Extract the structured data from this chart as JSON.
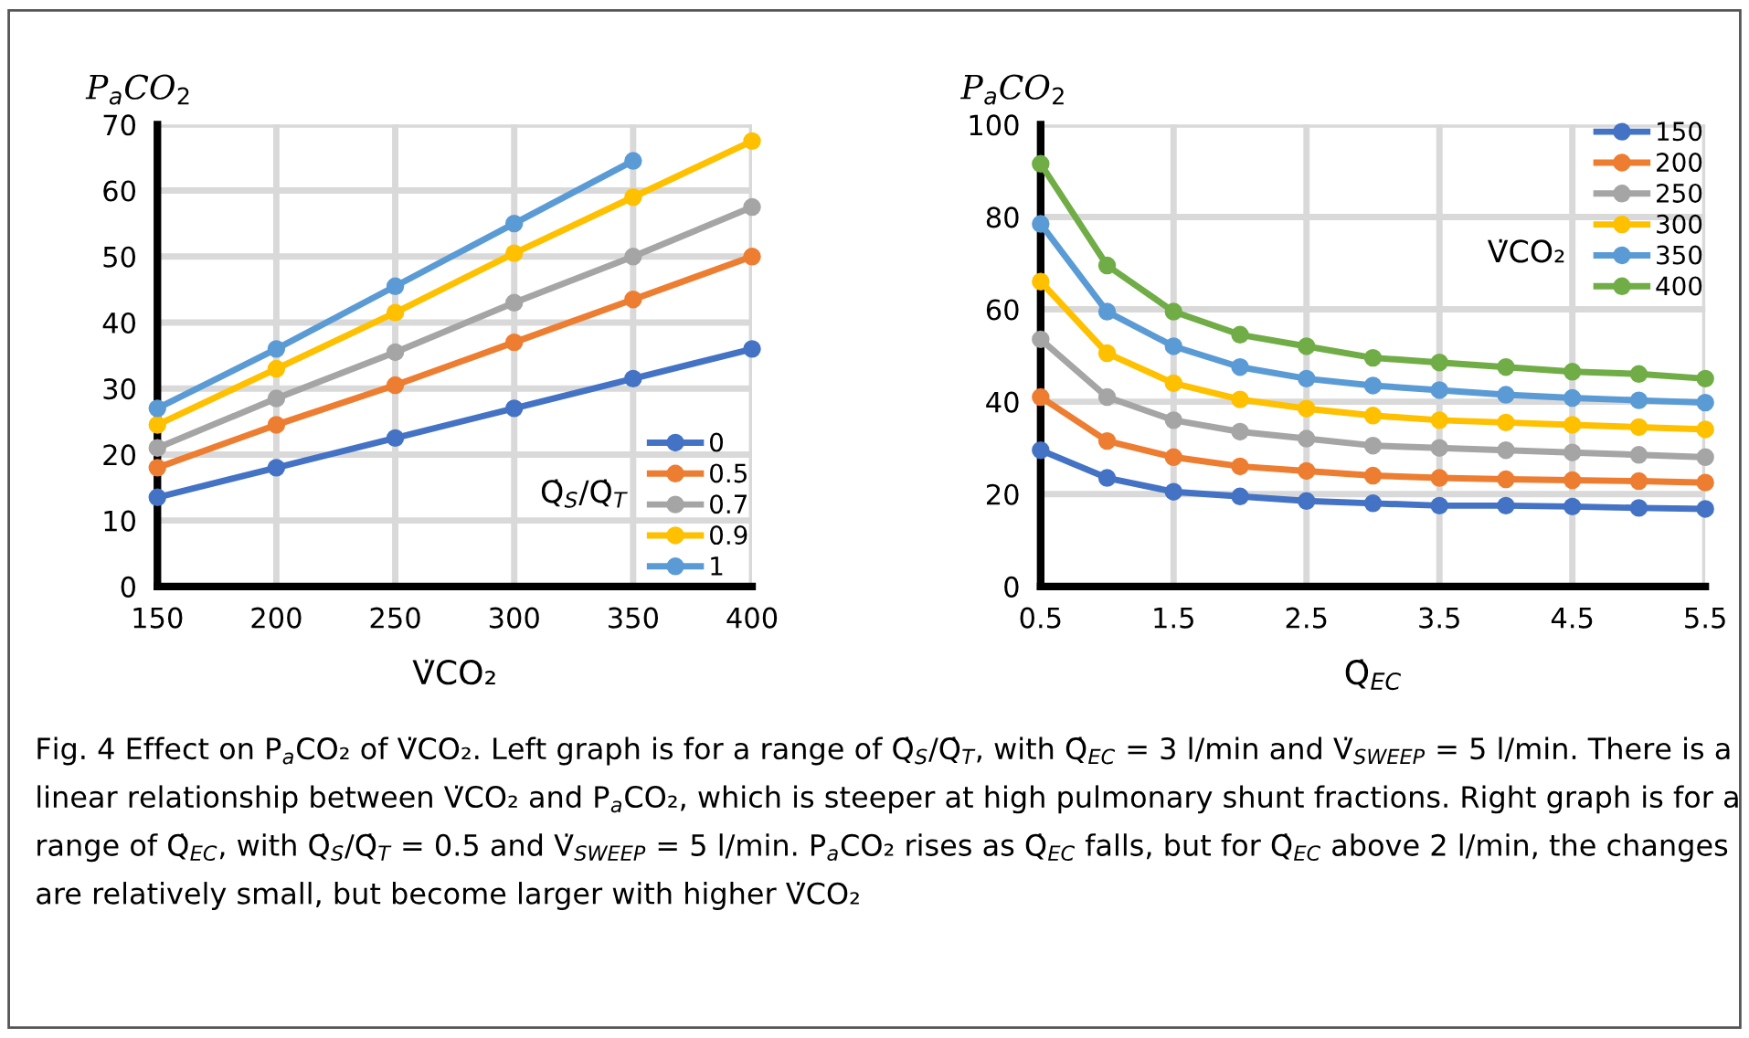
{
  "chart_data": [
    {
      "type": "line",
      "ylabel": "P$_{a}$CO$_{2}$",
      "xlabel": "V̇CO₂",
      "legend_title": "Q̇$_{S}$/Q̇$_{T}$",
      "x": [
        150,
        200,
        250,
        300,
        350,
        400
      ],
      "xlim": [
        150,
        400
      ],
      "xticks": [
        150,
        200,
        250,
        300,
        350,
        400
      ],
      "ylim": [
        0,
        70
      ],
      "yticks": [
        0,
        10,
        20,
        30,
        40,
        50,
        60,
        70
      ],
      "grid": true,
      "legend": "bottom right",
      "marker": "circle",
      "line_style": "solid",
      "series": [
        {
          "name": "0",
          "color": "#4472c4",
          "values": [
            13.5,
            18,
            22.5,
            27,
            31.5,
            36
          ]
        },
        {
          "name": "0.5",
          "color": "#ed7d31",
          "values": [
            18,
            24.5,
            30.5,
            37,
            43.5,
            50
          ]
        },
        {
          "name": "0.7",
          "color": "#a5a5a5",
          "values": [
            21,
            28.5,
            35.5,
            43,
            50,
            57.5
          ]
        },
        {
          "name": "0.9",
          "color": "#ffc000",
          "values": [
            24.5,
            33,
            41.5,
            50.5,
            59,
            67.5
          ]
        },
        {
          "name": "1",
          "color": "#5b9bd5",
          "values": [
            27,
            36,
            45.5,
            55,
            64.5,
            null
          ]
        }
      ]
    },
    {
      "type": "line",
      "ylabel": "P$_{a}$CO$_{2}$",
      "xlabel": "Q̇$_{EC}$",
      "legend_title": "V̇CO₂",
      "x": [
        0.5,
        1,
        1.5,
        2,
        2.5,
        3,
        3.5,
        4,
        4.5,
        5,
        5.5
      ],
      "xlim": [
        0.5,
        5.5
      ],
      "xticks": [
        0.5,
        1.5,
        2.5,
        3.5,
        4.5,
        5.5
      ],
      "ylim": [
        0,
        100
      ],
      "yticks": [
        0,
        20,
        40,
        60,
        80,
        100
      ],
      "grid": true,
      "legend": "top right",
      "marker": "circle",
      "line_style": "solid",
      "series": [
        {
          "name": "150",
          "color": "#4472c4",
          "values": [
            29.5,
            23.5,
            20.5,
            19.5,
            18.5,
            18,
            17.5,
            17.5,
            17.3,
            17,
            16.8
          ]
        },
        {
          "name": "200",
          "color": "#ed7d31",
          "values": [
            41,
            31.5,
            28,
            26,
            25,
            24,
            23.5,
            23.2,
            23,
            22.8,
            22.5
          ]
        },
        {
          "name": "250",
          "color": "#a5a5a5",
          "values": [
            53.5,
            41,
            36,
            33.5,
            32,
            30.5,
            30,
            29.5,
            29,
            28.5,
            28
          ]
        },
        {
          "name": "300",
          "color": "#ffc000",
          "values": [
            66,
            50.5,
            44,
            40.5,
            38.5,
            37,
            36,
            35.5,
            35,
            34.5,
            34
          ]
        },
        {
          "name": "350",
          "color": "#5b9bd5",
          "values": [
            78.5,
            59.5,
            52,
            47.5,
            45,
            43.5,
            42.5,
            41.5,
            40.8,
            40.3,
            39.8
          ]
        },
        {
          "name": "400",
          "color": "#70ad47",
          "values": [
            91.5,
            69.5,
            59.5,
            54.5,
            52,
            49.5,
            48.5,
            47.5,
            46.5,
            46,
            45
          ]
        }
      ],
      "annotations": [
        "Fig. 4 Effect on P$_{a}$CO₂ of V̇CO₂. Left graph is for a range of Q̇$_{S}$/Q̇$_{T}$, with Q̇$_{EC}$ = 3 l/min and V̇$_{SWEEP}$ = 5 l/min. There is a linear relationship between V̇CO₂ and P$_{a}$CO₂, which is steeper at high pulmonary shunt fractions. Right graph is for a range of Q̇$_{EC}$, with Q̇$_{S}$/Q̇$_{T}$ = 0.5 and V̇$_{SWEEP}$ = 5 l/min. P$_{a}$CO₂ rises as Q̇$_{EC}$ falls, but for Q̇$_{EC}$ above 2 l/min, the changes are relatively small, but become larger with higher V̇CO₂"
      ]
    }
  ]
}
